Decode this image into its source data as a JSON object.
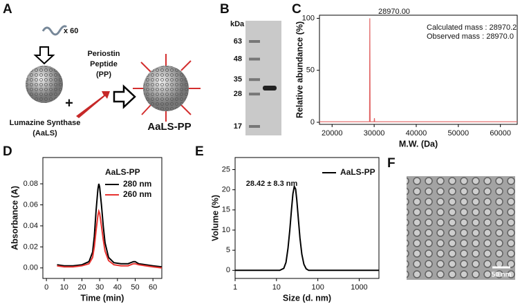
{
  "schematic": {
    "label": "A",
    "multiplier": "x 60",
    "plus": "+",
    "peptide_lines": [
      "Periostin",
      "Peptide",
      "(PP)"
    ],
    "scaffold_lines": [
      "Lumazine Synthase",
      "(AaLS)"
    ],
    "product": "AaLS-PP"
  },
  "gel": {
    "label": "B",
    "unit": "kDa",
    "markers": [
      63,
      48,
      35,
      28,
      17
    ]
  },
  "micrograph": {
    "label": "F",
    "scale_bar": "50 nm"
  },
  "chart_data": [
    {
      "label": "C",
      "type": "line",
      "x_label": "M.W. (Da)",
      "y_label": "Relative abundance (%)",
      "peak_label": "28970.00",
      "mass_lines": [
        "Calculated mass : 28970.2",
        "Observed mass : 28970.0"
      ],
      "x": [
        17000,
        22000,
        28800,
        28900,
        28970,
        29040,
        29200,
        30000,
        30060,
        30120,
        31000,
        40000,
        50000,
        64000
      ],
      "series": [
        {
          "color": "#e06060",
          "values": [
            0.5,
            0.5,
            0.5,
            0.5,
            100,
            0.5,
            0.5,
            0.5,
            4,
            0.5,
            0.5,
            0.5,
            0.5,
            0.5
          ]
        }
      ],
      "xlim": [
        17000,
        64000
      ],
      "xticks": [
        20000,
        30000,
        40000,
        50000,
        60000
      ],
      "ylim": [
        -2,
        103
      ],
      "yticks": [
        0,
        50,
        100
      ]
    },
    {
      "label": "D",
      "type": "line",
      "x_label": "Time (min)",
      "y_label": "Absorbance (A)",
      "legend_title": "AaLS-PP",
      "legend": "upper right",
      "x": [
        6,
        10,
        15,
        20,
        24,
        26,
        27,
        28,
        29,
        29.5,
        30,
        31,
        32,
        33,
        35,
        38,
        42,
        46,
        49,
        50,
        52,
        56,
        60,
        65
      ],
      "series": [
        {
          "name": "280 nm",
          "color": "#000000",
          "values": [
            0.003,
            0.002,
            0.002,
            0.003,
            0.006,
            0.015,
            0.03,
            0.055,
            0.075,
            0.08,
            0.077,
            0.06,
            0.04,
            0.024,
            0.01,
            0.005,
            0.004,
            0.004,
            0.006,
            0.006,
            0.004,
            0.003,
            0.002,
            0.001
          ]
        },
        {
          "name": "260 nm",
          "color": "#e8322f",
          "values": [
            0.002,
            0.001,
            0.001,
            0.002,
            0.004,
            0.01,
            0.02,
            0.036,
            0.05,
            0.054,
            0.052,
            0.04,
            0.027,
            0.016,
            0.007,
            0.003,
            0.002,
            0.002,
            0.004,
            0.004,
            0.003,
            0.002,
            0.001,
            0
          ]
        }
      ],
      "xlim": [
        -2,
        65
      ],
      "xticks": [
        0,
        10,
        20,
        30,
        40,
        50,
        60
      ],
      "ylim": [
        -0.01,
        0.105
      ],
      "yticks": [
        {
          "value": 0,
          "label": "0.00"
        },
        0.02,
        0.04,
        0.06,
        0.08
      ]
    },
    {
      "label": "E",
      "type": "line",
      "xscale": "log",
      "x_label": "Size (d. nm)",
      "y_label": "Volume (%)",
      "annotation": "28.42 ± 8.3 nm",
      "legend": "upper right",
      "x": [
        1,
        12,
        15,
        17,
        19,
        21,
        23,
        25,
        27,
        29,
        31,
        34,
        37,
        41,
        46,
        52,
        60,
        100,
        3000
      ],
      "series": [
        {
          "name": "AaLS-PP",
          "color": "#000000",
          "values": [
            0,
            0,
            0.5,
            2,
            5.5,
            10,
            15,
            19,
            20.8,
            20.2,
            17.5,
            12.5,
            8,
            4,
            1.5,
            0.4,
            0,
            0,
            0
          ]
        }
      ],
      "xlim": [
        1,
        3000
      ],
      "xticks": [
        1,
        10,
        100,
        1000
      ],
      "ylim": [
        -2,
        28
      ],
      "yticks": [
        0,
        5,
        10,
        15,
        20,
        25
      ]
    }
  ]
}
